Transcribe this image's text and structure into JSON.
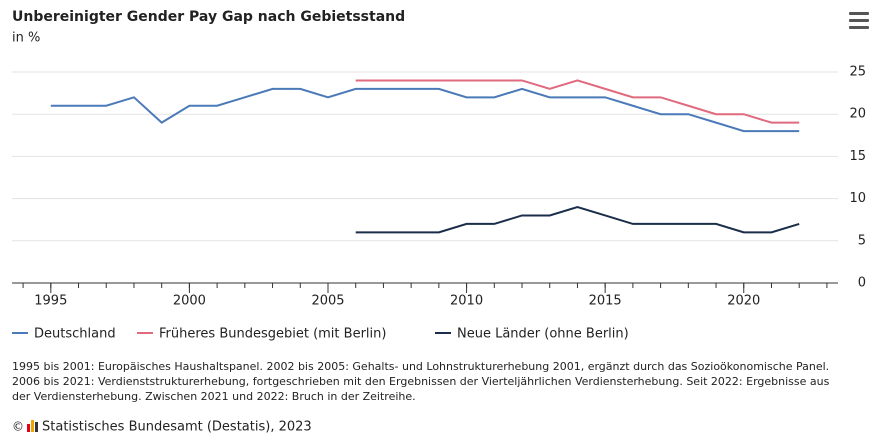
{
  "chart_data": {
    "type": "line",
    "title": "Unbereinigter Gender Pay Gap nach Gebietsstand",
    "subtitle": "in %",
    "x": [
      1995,
      1996,
      1997,
      1998,
      1999,
      2000,
      2001,
      2002,
      2003,
      2004,
      2005,
      2006,
      2007,
      2008,
      2009,
      2010,
      2011,
      2012,
      2013,
      2014,
      2015,
      2016,
      2017,
      2018,
      2019,
      2020,
      2021,
      2022
    ],
    "series": [
      {
        "name": "Deutschland",
        "color": "#4a7ab8",
        "values": [
          21,
          21,
          21,
          22,
          19,
          21,
          21,
          22,
          23,
          23,
          22,
          23,
          23,
          23,
          23,
          22,
          22,
          23,
          22,
          22,
          22,
          21,
          20,
          20,
          19,
          18,
          18,
          18
        ]
      },
      {
        "name": "Früheres Bundesgebiet (mit Berlin)",
        "color": "#e06a7e",
        "values": [
          null,
          null,
          null,
          null,
          null,
          null,
          null,
          null,
          null,
          null,
          null,
          24,
          24,
          24,
          24,
          24,
          24,
          24,
          23,
          24,
          23,
          22,
          22,
          21,
          20,
          20,
          19,
          19
        ]
      },
      {
        "name": "Neue Länder (ohne Berlin)",
        "color": "#1a2e4a",
        "values": [
          null,
          null,
          null,
          null,
          null,
          null,
          null,
          null,
          null,
          null,
          null,
          6,
          6,
          6,
          6,
          7,
          7,
          8,
          8,
          9,
          8,
          7,
          7,
          7,
          7,
          6,
          6,
          7
        ]
      }
    ],
    "xlim": [
      1993.6,
      2023.4
    ],
    "xticks": [
      1995,
      2000,
      2005,
      2010,
      2015,
      2020
    ],
    "ylim": [
      0,
      25
    ],
    "yticks": [
      0,
      5,
      10,
      15,
      20,
      25
    ],
    "grid": true,
    "legend": "bottom",
    "notes": [
      "1995 bis 2001: Europäisches Haushaltspanel. 2002 bis 2005: Gehalts- und Lohnstrukturerhebung 2001, ergänzt durch das Sozioökonomische Panel.",
      "2006 bis 2021: Verdienststrukturerhebung, fortgeschrieben mit den Ergebnissen der Vierteljährlichen Verdiensterhebung. Seit 2022: Ergebnisse aus",
      "der Verdiensterhebung. Zwischen 2021 und 2022: Bruch in der Zeitreihe."
    ],
    "source": "Statistisches Bundesamt (Destatis), 2023"
  }
}
